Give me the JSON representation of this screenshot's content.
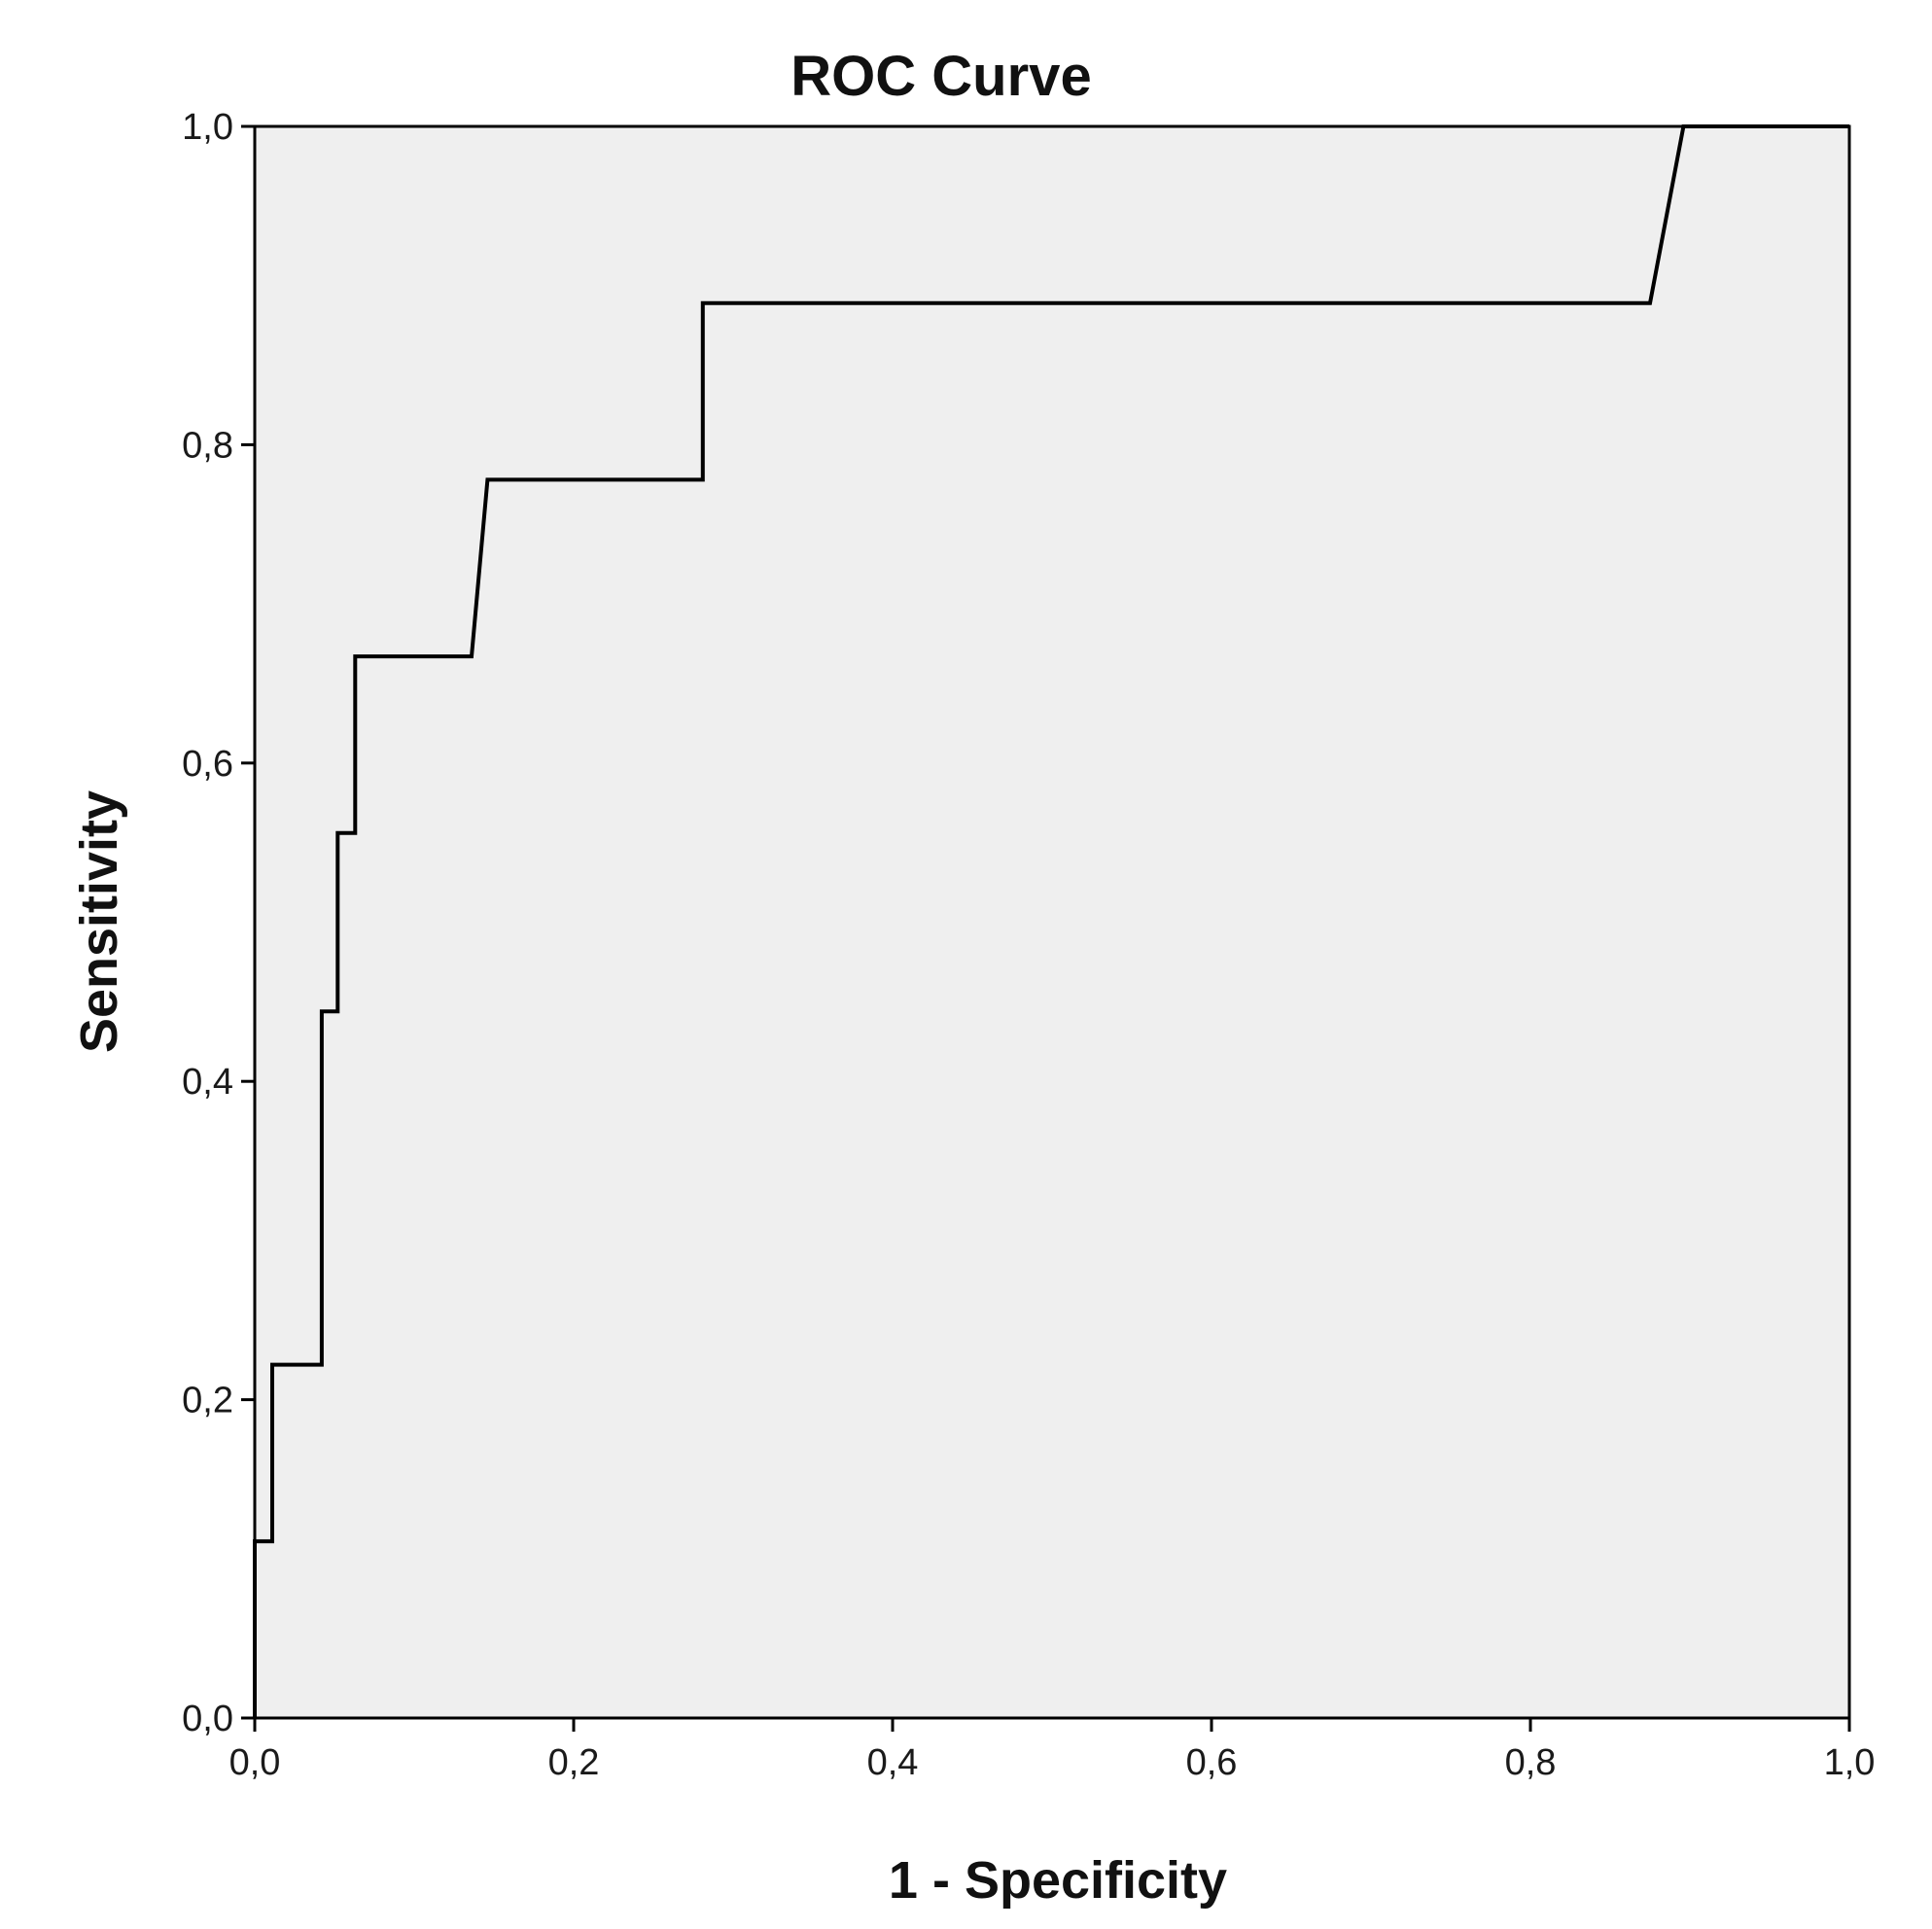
{
  "chart_data": {
    "type": "line",
    "title": "ROC Curve",
    "xlabel": "1 - Specificity",
    "ylabel": "Sensitivity",
    "xlim": [
      0,
      1
    ],
    "ylim": [
      0,
      1
    ],
    "x_ticks": [
      0,
      0.2,
      0.4,
      0.6,
      0.8,
      1.0
    ],
    "y_ticks": [
      0,
      0.2,
      0.4,
      0.6,
      0.8,
      1.0
    ],
    "x_tick_labels": [
      "0,0",
      "0,2",
      "0,4",
      "0,6",
      "0,8",
      "1,0"
    ],
    "y_tick_labels": [
      "0,0",
      "0,2",
      "0,4",
      "0,6",
      "0,8",
      "1,0"
    ],
    "grid": false,
    "series": [
      {
        "x": [
          0,
          0,
          0.011,
          0.011,
          0.042,
          0.042,
          0.052,
          0.052,
          0.063,
          0.063,
          0.136,
          0.146,
          0.281,
          0.281,
          0.875,
          0.896,
          1.0
        ],
        "y": [
          0,
          0.111,
          0.111,
          0.222,
          0.222,
          0.444,
          0.444,
          0.556,
          0.556,
          0.667,
          0.667,
          0.778,
          0.778,
          0.889,
          0.889,
          1.0,
          1.0
        ]
      }
    ],
    "colors": {
      "plot_background": "#efefef",
      "line": "#000000",
      "axis": "#000000"
    }
  }
}
